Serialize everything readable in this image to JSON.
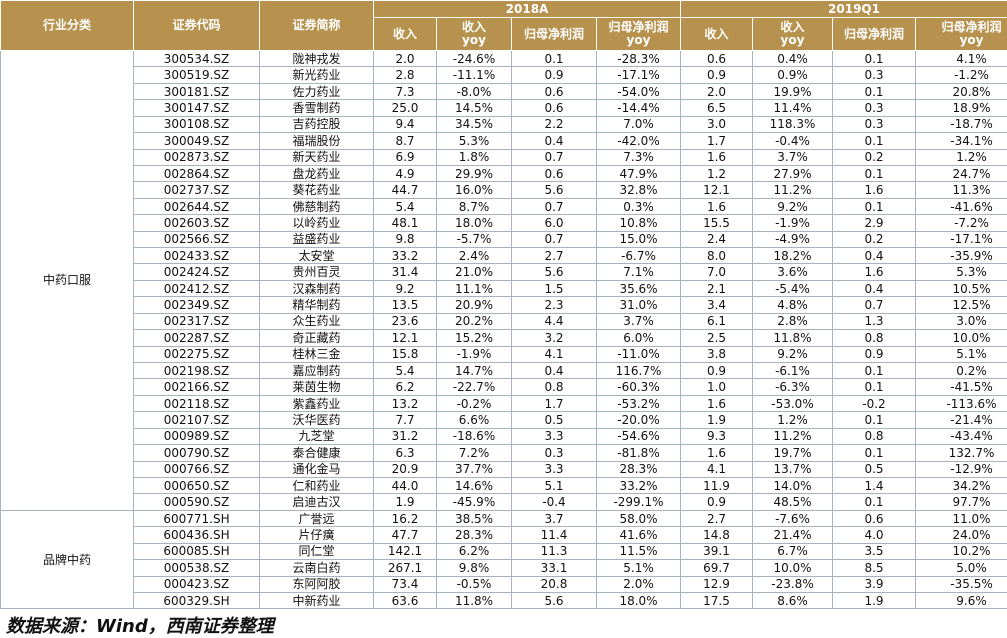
{
  "header": {
    "category": "行业分类",
    "code": "证券代码",
    "name": "证券简称",
    "period1": "2018A",
    "period2": "2019Q1",
    "revenue": "收入",
    "revenue_yoy_1": "收入",
    "revenue_yoy_2": "yoy",
    "net_profit": "归母净利润",
    "net_profit_yoy_1": "归母净利润",
    "net_profit_yoy_2": "yoy"
  },
  "groups": [
    {
      "name": "中药口服",
      "rows": [
        {
          "code": "300534.SZ",
          "name": "陇神戎发",
          "r18": "2.0",
          "ry18": "-24.6%",
          "p18": "0.1",
          "py18": "-28.3%",
          "r19": "0.6",
          "ry19": "0.4%",
          "p19": "0.1",
          "py19": "4.1%"
        },
        {
          "code": "300519.SZ",
          "name": "新光药业",
          "r18": "2.8",
          "ry18": "-11.1%",
          "p18": "0.9",
          "py18": "-17.1%",
          "r19": "0.9",
          "ry19": "0.9%",
          "p19": "0.3",
          "py19": "-1.2%"
        },
        {
          "code": "300181.SZ",
          "name": "佐力药业",
          "r18": "7.3",
          "ry18": "-8.0%",
          "p18": "0.6",
          "py18": "-54.0%",
          "r19": "2.0",
          "ry19": "19.9%",
          "p19": "0.1",
          "py19": "20.8%"
        },
        {
          "code": "300147.SZ",
          "name": "香雪制药",
          "r18": "25.0",
          "ry18": "14.5%",
          "p18": "0.6",
          "py18": "-14.4%",
          "r19": "6.5",
          "ry19": "11.4%",
          "p19": "0.3",
          "py19": "18.9%"
        },
        {
          "code": "300108.SZ",
          "name": "吉药控股",
          "r18": "9.4",
          "ry18": "34.5%",
          "p18": "2.2",
          "py18": "7.0%",
          "r19": "3.0",
          "ry19": "118.3%",
          "p19": "0.3",
          "py19": "-18.7%"
        },
        {
          "code": "300049.SZ",
          "name": "福瑞股份",
          "r18": "8.7",
          "ry18": "5.3%",
          "p18": "0.4",
          "py18": "-42.0%",
          "r19": "1.7",
          "ry19": "-0.4%",
          "p19": "0.1",
          "py19": "-34.1%"
        },
        {
          "code": "002873.SZ",
          "name": "新天药业",
          "r18": "6.9",
          "ry18": "1.8%",
          "p18": "0.7",
          "py18": "7.3%",
          "r19": "1.6",
          "ry19": "3.7%",
          "p19": "0.2",
          "py19": "1.2%"
        },
        {
          "code": "002864.SZ",
          "name": "盘龙药业",
          "r18": "4.9",
          "ry18": "29.9%",
          "p18": "0.6",
          "py18": "47.9%",
          "r19": "1.2",
          "ry19": "27.9%",
          "p19": "0.1",
          "py19": "24.7%"
        },
        {
          "code": "002737.SZ",
          "name": "葵花药业",
          "r18": "44.7",
          "ry18": "16.0%",
          "p18": "5.6",
          "py18": "32.8%",
          "r19": "12.1",
          "ry19": "11.2%",
          "p19": "1.6",
          "py19": "11.3%"
        },
        {
          "code": "002644.SZ",
          "name": "佛慈制药",
          "r18": "5.4",
          "ry18": "8.7%",
          "p18": "0.7",
          "py18": "0.3%",
          "r19": "1.6",
          "ry19": "9.2%",
          "p19": "0.1",
          "py19": "-41.6%"
        },
        {
          "code": "002603.SZ",
          "name": "以岭药业",
          "r18": "48.1",
          "ry18": "18.0%",
          "p18": "6.0",
          "py18": "10.8%",
          "r19": "15.5",
          "ry19": "-1.9%",
          "p19": "2.9",
          "py19": "-7.2%"
        },
        {
          "code": "002566.SZ",
          "name": "益盛药业",
          "r18": "9.8",
          "ry18": "-5.7%",
          "p18": "0.7",
          "py18": "15.0%",
          "r19": "2.4",
          "ry19": "-4.9%",
          "p19": "0.2",
          "py19": "-17.1%"
        },
        {
          "code": "002433.SZ",
          "name": "太安堂",
          "r18": "33.2",
          "ry18": "2.4%",
          "p18": "2.7",
          "py18": "-6.7%",
          "r19": "8.0",
          "ry19": "18.2%",
          "p19": "0.4",
          "py19": "-35.9%"
        },
        {
          "code": "002424.SZ",
          "name": "贵州百灵",
          "r18": "31.4",
          "ry18": "21.0%",
          "p18": "5.6",
          "py18": "7.1%",
          "r19": "7.0",
          "ry19": "3.6%",
          "p19": "1.6",
          "py19": "5.3%"
        },
        {
          "code": "002412.SZ",
          "name": "汉森制药",
          "r18": "9.2",
          "ry18": "11.1%",
          "p18": "1.5",
          "py18": "35.6%",
          "r19": "2.1",
          "ry19": "-5.4%",
          "p19": "0.4",
          "py19": "10.5%"
        },
        {
          "code": "002349.SZ",
          "name": "精华制药",
          "r18": "13.5",
          "ry18": "20.9%",
          "p18": "2.3",
          "py18": "31.0%",
          "r19": "3.4",
          "ry19": "4.8%",
          "p19": "0.7",
          "py19": "12.5%"
        },
        {
          "code": "002317.SZ",
          "name": "众生药业",
          "r18": "23.6",
          "ry18": "20.2%",
          "p18": "4.4",
          "py18": "3.7%",
          "r19": "6.1",
          "ry19": "2.8%",
          "p19": "1.3",
          "py19": "3.0%"
        },
        {
          "code": "002287.SZ",
          "name": "奇正藏药",
          "r18": "12.1",
          "ry18": "15.2%",
          "p18": "3.2",
          "py18": "6.0%",
          "r19": "2.5",
          "ry19": "11.8%",
          "p19": "0.8",
          "py19": "10.0%"
        },
        {
          "code": "002275.SZ",
          "name": "桂林三金",
          "r18": "15.8",
          "ry18": "-1.9%",
          "p18": "4.1",
          "py18": "-11.0%",
          "r19": "3.8",
          "ry19": "9.2%",
          "p19": "0.9",
          "py19": "5.1%"
        },
        {
          "code": "002198.SZ",
          "name": "嘉应制药",
          "r18": "5.4",
          "ry18": "14.7%",
          "p18": "0.4",
          "py18": "116.7%",
          "r19": "0.9",
          "ry19": "-6.1%",
          "p19": "0.1",
          "py19": "0.2%"
        },
        {
          "code": "002166.SZ",
          "name": "莱茵生物",
          "r18": "6.2",
          "ry18": "-22.7%",
          "p18": "0.8",
          "py18": "-60.3%",
          "r19": "1.0",
          "ry19": "-6.3%",
          "p19": "0.1",
          "py19": "-41.5%"
        },
        {
          "code": "002118.SZ",
          "name": "紫鑫药业",
          "r18": "13.2",
          "ry18": "-0.2%",
          "p18": "1.7",
          "py18": "-53.2%",
          "r19": "1.6",
          "ry19": "-53.0%",
          "p19": "-0.2",
          "py19": "-113.6%"
        },
        {
          "code": "002107.SZ",
          "name": "沃华医药",
          "r18": "7.7",
          "ry18": "6.6%",
          "p18": "0.5",
          "py18": "-20.0%",
          "r19": "1.9",
          "ry19": "1.2%",
          "p19": "0.1",
          "py19": "-21.4%"
        },
        {
          "code": "000989.SZ",
          "name": "九芝堂",
          "r18": "31.2",
          "ry18": "-18.6%",
          "p18": "3.3",
          "py18": "-54.6%",
          "r19": "9.3",
          "ry19": "11.2%",
          "p19": "0.8",
          "py19": "-43.4%"
        },
        {
          "code": "000790.SZ",
          "name": "泰合健康",
          "r18": "6.3",
          "ry18": "7.2%",
          "p18": "0.3",
          "py18": "-81.8%",
          "r19": "1.6",
          "ry19": "19.7%",
          "p19": "0.1",
          "py19": "132.7%"
        },
        {
          "code": "000766.SZ",
          "name": "通化金马",
          "r18": "20.9",
          "ry18": "37.7%",
          "p18": "3.3",
          "py18": "28.3%",
          "r19": "4.1",
          "ry19": "13.7%",
          "p19": "0.5",
          "py19": "-12.9%"
        },
        {
          "code": "000650.SZ",
          "name": "仁和药业",
          "r18": "44.0",
          "ry18": "14.6%",
          "p18": "5.1",
          "py18": "33.2%",
          "r19": "11.9",
          "ry19": "14.0%",
          "p19": "1.4",
          "py19": "34.2%"
        },
        {
          "code": "000590.SZ",
          "name": "启迪古汉",
          "r18": "1.9",
          "ry18": "-45.9%",
          "p18": "-0.4",
          "py18": "-299.1%",
          "r19": "0.9",
          "ry19": "48.5%",
          "p19": "0.1",
          "py19": "97.7%"
        }
      ]
    },
    {
      "name": "品牌中药",
      "rows": [
        {
          "code": "600771.SH",
          "name": "广誉远",
          "r18": "16.2",
          "ry18": "38.5%",
          "p18": "3.7",
          "py18": "58.0%",
          "r19": "2.7",
          "ry19": "-7.6%",
          "p19": "0.6",
          "py19": "11.0%"
        },
        {
          "code": "600436.SH",
          "name": "片仔癀",
          "r18": "47.7",
          "ry18": "28.3%",
          "p18": "11.4",
          "py18": "41.6%",
          "r19": "14.8",
          "ry19": "21.4%",
          "p19": "4.0",
          "py19": "24.0%"
        },
        {
          "code": "600085.SH",
          "name": "同仁堂",
          "r18": "142.1",
          "ry18": "6.2%",
          "p18": "11.3",
          "py18": "11.5%",
          "r19": "39.1",
          "ry19": "6.7%",
          "p19": "3.5",
          "py19": "10.2%"
        },
        {
          "code": "000538.SZ",
          "name": "云南白药",
          "r18": "267.1",
          "ry18": "9.8%",
          "p18": "33.1",
          "py18": "5.1%",
          "r19": "69.7",
          "ry19": "10.0%",
          "p19": "8.5",
          "py19": "5.0%"
        },
        {
          "code": "000423.SZ",
          "name": "东阿阿胶",
          "r18": "73.4",
          "ry18": "-0.5%",
          "p18": "20.8",
          "py18": "2.0%",
          "r19": "12.9",
          "ry19": "-23.8%",
          "p19": "3.9",
          "py19": "-35.5%"
        },
        {
          "code": "600329.SH",
          "name": "中新药业",
          "r18": "63.6",
          "ry18": "11.8%",
          "p18": "5.6",
          "py18": "18.0%",
          "r19": "17.5",
          "ry19": "8.6%",
          "p19": "1.9",
          "py19": "9.6%"
        }
      ]
    }
  ],
  "source": "数据来源：Wind，西南证券整理"
}
